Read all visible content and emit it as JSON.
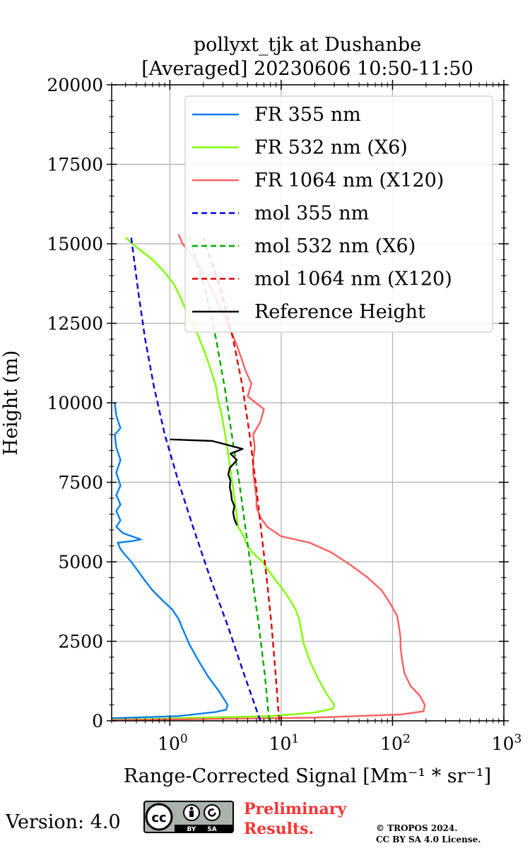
{
  "chart_data": {
    "type": "line",
    "title_line1": "pollyxt_tjk at Dushanbe",
    "title_line2": "[Averaged] 20230606 10:50-11:50",
    "xlabel": "Range-Corrected Signal [Mm⁻¹ * sr⁻¹]",
    "ylabel": "Height (m)",
    "xscale": "log",
    "xlim": [
      0.3,
      1000
    ],
    "ylim": [
      0,
      20000
    ],
    "yticks": [
      0,
      2500,
      5000,
      7500,
      10000,
      12500,
      15000,
      17500,
      20000
    ],
    "ytick_labels": [
      "0",
      "2500",
      "5000",
      "7500",
      "10000",
      "12500",
      "15000",
      "17500",
      "20000"
    ],
    "xtick_labels": [
      {
        "value": 1,
        "base": "10",
        "exp": "0"
      },
      {
        "value": 10,
        "base": "10",
        "exp": "1"
      },
      {
        "value": 100,
        "base": "10",
        "exp": "2"
      },
      {
        "value": 1000,
        "base": "10",
        "exp": "3"
      }
    ],
    "grid": true,
    "legend_position": "upper-right",
    "series": [
      {
        "name": "FR 355 nm",
        "color": "#0a7ff0",
        "style": "solid",
        "points": [
          [
            0.3,
            80
          ],
          [
            1.2,
            150
          ],
          [
            2.6,
            280
          ],
          [
            3.2,
            350
          ],
          [
            3.3,
            500
          ],
          [
            2.8,
            900
          ],
          [
            2.2,
            1400
          ],
          [
            1.8,
            1900
          ],
          [
            1.5,
            2400
          ],
          [
            1.3,
            2900
          ],
          [
            1.2,
            3200
          ],
          [
            1.05,
            3500
          ],
          [
            0.85,
            3800
          ],
          [
            0.7,
            4100
          ],
          [
            0.6,
            4400
          ],
          [
            0.52,
            4700
          ],
          [
            0.45,
            5000
          ],
          [
            0.4,
            5200
          ],
          [
            0.36,
            5400
          ],
          [
            0.34,
            5600
          ],
          [
            0.45,
            5650
          ],
          [
            0.55,
            5700
          ],
          [
            0.38,
            5900
          ],
          [
            0.33,
            6100
          ],
          [
            0.36,
            6300
          ],
          [
            0.33,
            6600
          ],
          [
            0.36,
            6800
          ],
          [
            0.33,
            7100
          ],
          [
            0.36,
            7400
          ],
          [
            0.33,
            7800
          ],
          [
            0.36,
            8200
          ],
          [
            0.33,
            8600
          ],
          [
            0.32,
            9000
          ],
          [
            0.36,
            9200
          ],
          [
            0.33,
            9600
          ],
          [
            0.32,
            10000
          ]
        ]
      },
      {
        "name": "FR 532 nm (X6)",
        "color": "#80ff00",
        "style": "solid",
        "points": [
          [
            0.3,
            30
          ],
          [
            8,
            150
          ],
          [
            20,
            260
          ],
          [
            29,
            380
          ],
          [
            30,
            500
          ],
          [
            25,
            900
          ],
          [
            21,
            1400
          ],
          [
            18,
            1900
          ],
          [
            16,
            2400
          ],
          [
            15,
            2900
          ],
          [
            14.5,
            3200
          ],
          [
            13.5,
            3500
          ],
          [
            12,
            3800
          ],
          [
            10.5,
            4100
          ],
          [
            9,
            4400
          ],
          [
            7.8,
            4700
          ],
          [
            6.8,
            5000
          ],
          [
            5.5,
            5300
          ],
          [
            5,
            5500
          ],
          [
            4.6,
            5800
          ],
          [
            4.1,
            6100
          ],
          [
            4.0,
            6400
          ],
          [
            3.9,
            6700
          ],
          [
            3.8,
            7000
          ],
          [
            3.7,
            7300
          ],
          [
            3.6,
            7600
          ],
          [
            3.5,
            7900
          ],
          [
            3.4,
            8200
          ],
          [
            3.3,
            8500
          ],
          [
            3.2,
            8800
          ],
          [
            3.1,
            9100
          ],
          [
            3.0,
            9400
          ],
          [
            2.9,
            9700
          ],
          [
            2.7,
            10100
          ],
          [
            2.6,
            10500
          ],
          [
            2.4,
            10900
          ],
          [
            2.2,
            11300
          ],
          [
            2.0,
            11700
          ],
          [
            1.8,
            12100
          ],
          [
            1.6,
            12500
          ],
          [
            1.4,
            12900
          ],
          [
            1.25,
            13300
          ],
          [
            1.1,
            13700
          ],
          [
            0.9,
            14100
          ],
          [
            0.7,
            14500
          ],
          [
            0.5,
            14900
          ],
          [
            0.4,
            15200
          ]
        ]
      },
      {
        "name": "FR 1064 nm (X120)",
        "color": "#ff6060",
        "style": "solid",
        "points": [
          [
            0.3,
            20
          ],
          [
            20,
            100
          ],
          [
            120,
            200
          ],
          [
            190,
            300
          ],
          [
            195,
            500
          ],
          [
            175,
            800
          ],
          [
            145,
            1100
          ],
          [
            128,
            1500
          ],
          [
            122,
            1900
          ],
          [
            118,
            2300
          ],
          [
            118,
            2600
          ],
          [
            115,
            2900
          ],
          [
            110,
            3300
          ],
          [
            95,
            3700
          ],
          [
            80,
            4100
          ],
          [
            60,
            4500
          ],
          [
            42,
            4900
          ],
          [
            28,
            5300
          ],
          [
            18,
            5600
          ],
          [
            10,
            5800
          ],
          [
            7.5,
            6100
          ],
          [
            6.5,
            6400
          ],
          [
            6,
            6700
          ],
          [
            6,
            7000
          ],
          [
            5.8,
            7400
          ],
          [
            5.6,
            7800
          ],
          [
            5.6,
            8200
          ],
          [
            5.8,
            8600
          ],
          [
            5.6,
            9000
          ],
          [
            6.5,
            9400
          ],
          [
            7,
            9800
          ],
          [
            5,
            10200
          ],
          [
            5.4,
            10600
          ],
          [
            4.8,
            11000
          ],
          [
            4.4,
            11400
          ],
          [
            4.0,
            11800
          ],
          [
            3.6,
            12200
          ],
          [
            3.2,
            12600
          ],
          [
            2.8,
            13000
          ],
          [
            2.5,
            13400
          ],
          [
            2.2,
            13800
          ],
          [
            1.9,
            14200
          ],
          [
            1.6,
            14600
          ],
          [
            1.3,
            15000
          ],
          [
            1.2,
            15300
          ]
        ]
      },
      {
        "name": "mol 355 nm",
        "color": "#0000e0",
        "style": "dashed",
        "points": [
          [
            6.5,
            0
          ],
          [
            4.6,
            1500
          ],
          [
            3.3,
            3000
          ],
          [
            2.3,
            4500
          ],
          [
            1.65,
            6000
          ],
          [
            1.2,
            7500
          ],
          [
            0.9,
            9000
          ],
          [
            0.72,
            10500
          ],
          [
            0.6,
            12000
          ],
          [
            0.52,
            13500
          ],
          [
            0.45,
            15200
          ]
        ]
      },
      {
        "name": "mol 532 nm (X6)",
        "color": "#00aa00",
        "style": "dashed",
        "points": [
          [
            7.8,
            0
          ],
          [
            7.1,
            1500
          ],
          [
            6.3,
            3000
          ],
          [
            5.5,
            4500
          ],
          [
            4.8,
            6000
          ],
          [
            4.2,
            7500
          ],
          [
            3.6,
            9000
          ],
          [
            3.1,
            10500
          ],
          [
            2.6,
            12000
          ],
          [
            2.1,
            13500
          ],
          [
            1.5,
            15200
          ]
        ]
      },
      {
        "name": "mol 1064 nm (X120)",
        "color": "#e00000",
        "style": "dashed",
        "points": [
          [
            9.6,
            0
          ],
          [
            8.9,
            1500
          ],
          [
            8.2,
            3000
          ],
          [
            7.4,
            4500
          ],
          [
            6.6,
            6000
          ],
          [
            5.9,
            7500
          ],
          [
            5.2,
            9000
          ],
          [
            4.5,
            10500
          ],
          [
            3.7,
            12000
          ],
          [
            2.9,
            13500
          ],
          [
            2.0,
            15200
          ]
        ]
      },
      {
        "name": "Reference Height",
        "color": "#000000",
        "style": "solid",
        "points": [
          [
            4.0,
            6150
          ],
          [
            3.8,
            6350
          ],
          [
            3.7,
            6550
          ],
          [
            3.8,
            6750
          ],
          [
            3.6,
            6950
          ],
          [
            3.55,
            7150
          ],
          [
            3.45,
            7350
          ],
          [
            3.5,
            7550
          ],
          [
            3.35,
            7750
          ],
          [
            3.45,
            7950
          ],
          [
            4.0,
            8200
          ],
          [
            3.5,
            8400
          ],
          [
            4.5,
            8550
          ],
          [
            3.1,
            8700
          ],
          [
            2.4,
            8800
          ],
          [
            1.0,
            8850
          ]
        ]
      }
    ]
  },
  "footer": {
    "version_label": "Version: 4.0",
    "badge_cc": "cc",
    "badge_by": "BY",
    "badge_sa": "SA",
    "preliminary_line1": "Preliminary",
    "preliminary_line2": "Results.",
    "copyright_line1": "© TROPOS 2024.",
    "copyright_line2": "CC BY SA 4.0 License."
  }
}
